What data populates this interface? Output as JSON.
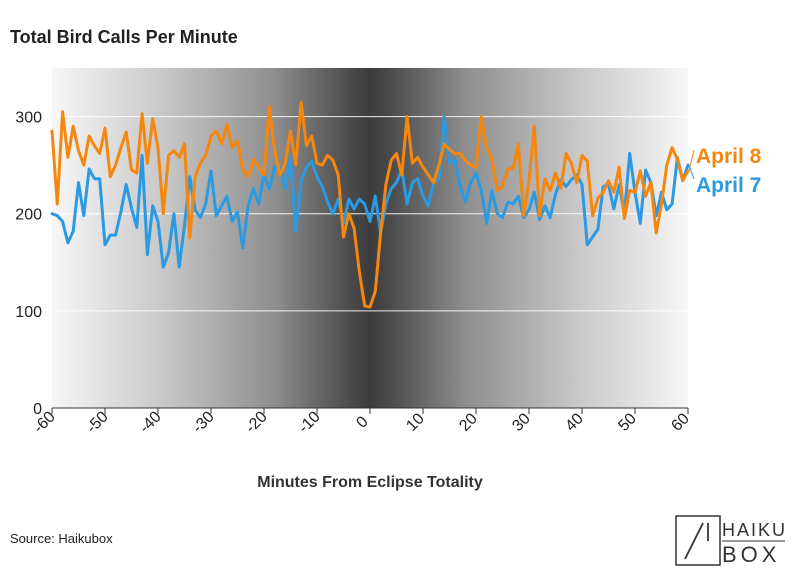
{
  "chart_data": {
    "type": "line",
    "title": "Total Bird Calls Per Minute",
    "xlabel": "Minutes From Eclipse Totality",
    "ylabel": "",
    "xlim": [
      -60,
      60
    ],
    "ylim": [
      0,
      350
    ],
    "x_ticks": [
      -60,
      -50,
      -40,
      -30,
      -20,
      -10,
      0,
      10,
      20,
      30,
      40,
      50,
      60
    ],
    "y_ticks": [
      0,
      100,
      200,
      300
    ],
    "gridlines": true,
    "background": "dark gradient centered on totality",
    "series": [
      {
        "name": "April 8",
        "color": "#f5870f",
        "x": [
          -60,
          -59,
          -58,
          -57,
          -56,
          -55,
          -54,
          -53,
          -52,
          -51,
          -50,
          -49,
          -48,
          -47,
          -46,
          -45,
          -44,
          -43,
          -42,
          -41,
          -40,
          -39,
          -38,
          -37,
          -36,
          -35,
          -34,
          -33,
          -32,
          -31,
          -30,
          -29,
          -28,
          -27,
          -26,
          -25,
          -24,
          -23,
          -22,
          -21,
          -20,
          -19,
          -18,
          -17,
          -16,
          -15,
          -14,
          -13,
          -12,
          -11,
          -10,
          -9,
          -8,
          -7,
          -6,
          -5,
          -4,
          -3,
          -2,
          -1,
          0,
          1,
          2,
          3,
          4,
          5,
          6,
          7,
          8,
          9,
          10,
          11,
          12,
          13,
          14,
          15,
          16,
          17,
          18,
          19,
          20,
          21,
          22,
          23,
          24,
          25,
          26,
          27,
          28,
          29,
          30,
          31,
          32,
          33,
          34,
          35,
          36,
          37,
          38,
          39,
          40,
          41,
          42,
          43,
          44,
          45,
          46,
          47,
          48,
          49,
          50,
          51,
          52,
          53,
          54,
          55,
          56,
          57,
          58,
          59,
          60
        ],
        "values": [
          285,
          210,
          305,
          258,
          290,
          265,
          250,
          280,
          270,
          262,
          288,
          238,
          250,
          268,
          284,
          245,
          242,
          303,
          252,
          298,
          268,
          200,
          260,
          265,
          258,
          272,
          175,
          238,
          252,
          260,
          280,
          285,
          272,
          292,
          268,
          275,
          245,
          238,
          256,
          248,
          240,
          310,
          265,
          240,
          252,
          285,
          250,
          315,
          270,
          280,
          252,
          250,
          260,
          255,
          240,
          176,
          200,
          185,
          140,
          105,
          104,
          120,
          180,
          230,
          255,
          262,
          240,
          300,
          252,
          258,
          248,
          240,
          232,
          250,
          272,
          266,
          262,
          262,
          255,
          250,
          248,
          300,
          268,
          256,
          224,
          228,
          246,
          247,
          272,
          198,
          234,
          290,
          198,
          236,
          224,
          242,
          226,
          262,
          252,
          232,
          260,
          254,
          198,
          216,
          222,
          234,
          222,
          248,
          195,
          224,
          222,
          244,
          218,
          232,
          180,
          210,
          250,
          268,
          256,
          234,
          244
        ]
      },
      {
        "name": "April 7",
        "color": "#2b9ae2",
        "x": [
          -60,
          -59,
          -58,
          -57,
          -56,
          -55,
          -54,
          -53,
          -52,
          -51,
          -50,
          -49,
          -48,
          -47,
          -46,
          -45,
          -44,
          -43,
          -42,
          -41,
          -40,
          -39,
          -38,
          -37,
          -36,
          -35,
          -34,
          -33,
          -32,
          -31,
          -30,
          -29,
          -28,
          -27,
          -26,
          -25,
          -24,
          -23,
          -22,
          -21,
          -20,
          -19,
          -18,
          -17,
          -16,
          -15,
          -14,
          -13,
          -12,
          -11,
          -10,
          -9,
          -8,
          -7,
          -6,
          -5,
          -4,
          -3,
          -2,
          -1,
          0,
          1,
          2,
          3,
          4,
          5,
          6,
          7,
          8,
          9,
          10,
          11,
          12,
          13,
          14,
          15,
          16,
          17,
          18,
          19,
          20,
          21,
          22,
          23,
          24,
          25,
          26,
          27,
          28,
          29,
          30,
          31,
          32,
          33,
          34,
          35,
          36,
          37,
          38,
          39,
          40,
          41,
          42,
          43,
          44,
          45,
          46,
          47,
          48,
          49,
          50,
          51,
          52,
          53,
          54,
          55,
          56,
          57,
          58,
          59,
          60
        ],
        "values": [
          200,
          198,
          192,
          170,
          182,
          232,
          198,
          246,
          236,
          236,
          168,
          178,
          178,
          202,
          230,
          206,
          186,
          260,
          158,
          208,
          192,
          145,
          160,
          200,
          145,
          188,
          238,
          204,
          196,
          210,
          244,
          198,
          208,
          218,
          192,
          202,
          165,
          208,
          226,
          210,
          240,
          225,
          248,
          248,
          226,
          258,
          182,
          234,
          248,
          254,
          238,
          228,
          212,
          200,
          215,
          190,
          215,
          205,
          215,
          210,
          192,
          218,
          180,
          210,
          226,
          232,
          246,
          210,
          232,
          236,
          218,
          208,
          232,
          236,
          300,
          252,
          256,
          228,
          212,
          232,
          242,
          224,
          190,
          224,
          200,
          196,
          212,
          210,
          218,
          196,
          204,
          222,
          194,
          208,
          196,
          220,
          235,
          228,
          235,
          240,
          230,
          168,
          176,
          184,
          228,
          230,
          205,
          230,
          200,
          262,
          222,
          190,
          245,
          232,
          198,
          222,
          204,
          210,
          258,
          234,
          250
        ]
      }
    ]
  },
  "source": "Source: Haikubox",
  "logo": {
    "word_top": "HAIKU",
    "word_bottom": "BOX"
  },
  "colors": {
    "grid": "#ffffff",
    "axis": "#333333",
    "text": "#222222"
  }
}
